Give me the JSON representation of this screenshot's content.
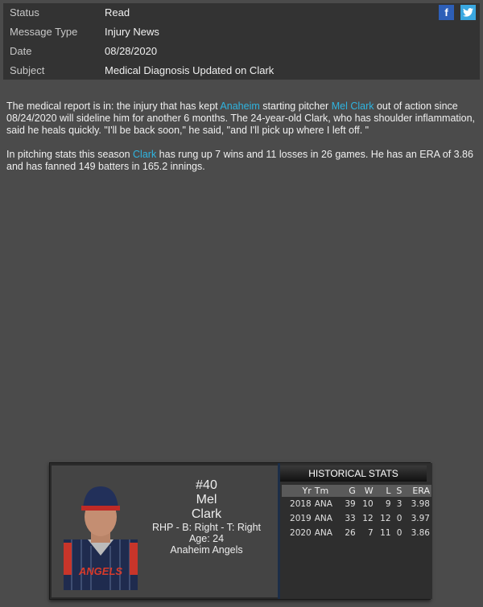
{
  "header": {
    "rows": [
      {
        "label": "Status",
        "value": "Read"
      },
      {
        "label": "Message Type",
        "value": "Injury News"
      },
      {
        "label": "Date",
        "value": "08/28/2020"
      },
      {
        "label": "Subject",
        "value": "Medical Diagnosis Updated on Clark"
      }
    ],
    "social": [
      {
        "icon": "facebook-icon",
        "color": "#2d5fb8"
      },
      {
        "icon": "twitter-icon",
        "color": "#3aa7e0"
      }
    ]
  },
  "article": {
    "p1": {
      "t1": "The medical report is in: the injury that has kept ",
      "link1": "Anaheim",
      "t2": " starting pitcher ",
      "link2": "Mel Clark",
      "t3": " out of action since 08/24/2020 will sideline him for another 6 months. The 24-year-old Clark, who has shoulder inflammation, said he heals quickly. \"I'll be back soon,\" he said, \"and I'll pick up where I left off. \""
    },
    "p2": {
      "t1": "In pitching stats this season ",
      "link1": "Clark",
      "t2": " has rung up 7 wins and 11 losses in 26 games. He has an ERA of 3.86 and has fanned 149 batters in 165.2 innings."
    }
  },
  "player": {
    "number": "#40",
    "first": "Mel",
    "last": "Clark",
    "bio": "RHP - B: Right - T: Right",
    "age": "Age: 24",
    "team": "Anaheim Angels",
    "jersey_text": "ANGELS"
  },
  "stats": {
    "title": "HISTORICAL STATS",
    "columns": [
      "Yr",
      "Tm",
      "G",
      "W",
      "L",
      "S",
      "ERA"
    ],
    "rows": [
      [
        "2018",
        "ANA",
        "39",
        "10",
        "9",
        "3",
        "3.98"
      ],
      [
        "2019",
        "ANA",
        "33",
        "12",
        "12",
        "0",
        "3.97"
      ],
      [
        "2020",
        "ANA",
        "26",
        "7",
        "11",
        "0",
        "3.86"
      ]
    ]
  }
}
